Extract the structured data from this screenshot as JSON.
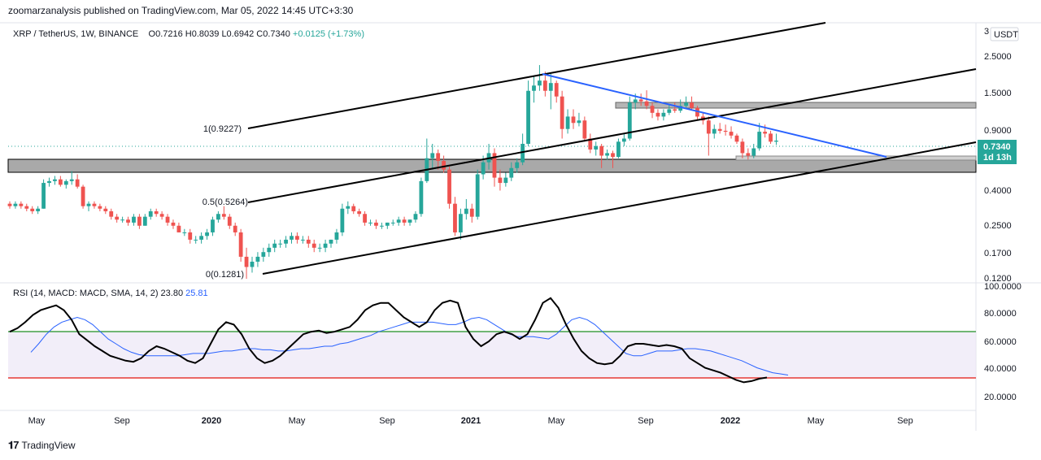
{
  "header": {
    "publisher_line": "zoomarzanalysis published on TradingView.com, Mar 05, 2022 14:45 UTC+3:30"
  },
  "symbol": {
    "title": "XRP / TetherUS, 1W, BINANCE",
    "open": "O0.7216",
    "high": "H0.8039",
    "low": "L0.6942",
    "close": "C0.7340",
    "change": "+0.0125 (+1.73%)"
  },
  "price_axis": {
    "currency_button": "USDT",
    "labels": [
      "3",
      "2.5000",
      "1.5000",
      "0.9000",
      "0.4000",
      "0.2500",
      "0.1700",
      "0.1200"
    ],
    "last_price": "0.7340",
    "countdown": "1d 13h",
    "last_price_color": "#26a69a"
  },
  "fib_labels": [
    "1(0.9227)",
    "0.5(0.5264)",
    "0(0.1281)"
  ],
  "rsi": {
    "legend": "RSI (14, MACD: MACD, SMA, 14, 2)",
    "value": "23.80",
    "ma_value": "25.81",
    "axis_labels": [
      "100.0000",
      "80.0000",
      "60.0000",
      "40.0000",
      "20.0000"
    ],
    "upper_band": 67,
    "lower_band": 33,
    "rsi_color": "#000000",
    "ma_color": "#2962ff"
  },
  "time_axis": [
    "May",
    "Sep",
    "2020",
    "May",
    "Sep",
    "2021",
    "May",
    "Sep",
    "2022",
    "May",
    "Sep"
  ],
  "footer": {
    "brand": "TradingView"
  },
  "chart_data": {
    "type": "candlestick",
    "pair": "XRP / TetherUS",
    "interval": "1W",
    "log_scale": true,
    "y_ticks": [
      0.12,
      0.17,
      0.25,
      0.4,
      0.9,
      1.5,
      2.5,
      3
    ],
    "ylim": [
      0.12,
      3
    ],
    "candles": [
      [
        0.32,
        0.33,
        0.3,
        0.31
      ],
      [
        0.31,
        0.33,
        0.3,
        0.32
      ],
      [
        0.32,
        0.33,
        0.3,
        0.31
      ],
      [
        0.31,
        0.32,
        0.29,
        0.3
      ],
      [
        0.3,
        0.31,
        0.28,
        0.29
      ],
      [
        0.29,
        0.31,
        0.28,
        0.3
      ],
      [
        0.3,
        0.44,
        0.3,
        0.42
      ],
      [
        0.42,
        0.45,
        0.4,
        0.43
      ],
      [
        0.43,
        0.46,
        0.41,
        0.44
      ],
      [
        0.44,
        0.46,
        0.4,
        0.41
      ],
      [
        0.41,
        0.44,
        0.39,
        0.43
      ],
      [
        0.43,
        0.49,
        0.41,
        0.44
      ],
      [
        0.44,
        0.47,
        0.39,
        0.4
      ],
      [
        0.4,
        0.41,
        0.3,
        0.31
      ],
      [
        0.31,
        0.33,
        0.29,
        0.32
      ],
      [
        0.32,
        0.33,
        0.3,
        0.31
      ],
      [
        0.31,
        0.32,
        0.29,
        0.3
      ],
      [
        0.3,
        0.31,
        0.28,
        0.29
      ],
      [
        0.29,
        0.3,
        0.26,
        0.27
      ],
      [
        0.27,
        0.28,
        0.25,
        0.26
      ],
      [
        0.26,
        0.27,
        0.25,
        0.26
      ],
      [
        0.26,
        0.27,
        0.24,
        0.25
      ],
      [
        0.25,
        0.28,
        0.24,
        0.27
      ],
      [
        0.27,
        0.28,
        0.23,
        0.24
      ],
      [
        0.24,
        0.28,
        0.24,
        0.27
      ],
      [
        0.27,
        0.3,
        0.26,
        0.29
      ],
      [
        0.29,
        0.3,
        0.27,
        0.28
      ],
      [
        0.28,
        0.29,
        0.26,
        0.27
      ],
      [
        0.27,
        0.28,
        0.24,
        0.25
      ],
      [
        0.25,
        0.26,
        0.23,
        0.24
      ],
      [
        0.24,
        0.25,
        0.22,
        0.22
      ],
      [
        0.22,
        0.23,
        0.21,
        0.22
      ],
      [
        0.22,
        0.23,
        0.19,
        0.2
      ],
      [
        0.2,
        0.21,
        0.19,
        0.2
      ],
      [
        0.2,
        0.22,
        0.19,
        0.21
      ],
      [
        0.21,
        0.23,
        0.2,
        0.22
      ],
      [
        0.22,
        0.27,
        0.21,
        0.26
      ],
      [
        0.26,
        0.29,
        0.25,
        0.28
      ],
      [
        0.28,
        0.31,
        0.26,
        0.27
      ],
      [
        0.27,
        0.28,
        0.23,
        0.24
      ],
      [
        0.24,
        0.25,
        0.21,
        0.22
      ],
      [
        0.22,
        0.23,
        0.15,
        0.16
      ],
      [
        0.16,
        0.18,
        0.12,
        0.14
      ],
      [
        0.14,
        0.16,
        0.13,
        0.15
      ],
      [
        0.15,
        0.17,
        0.14,
        0.16
      ],
      [
        0.16,
        0.18,
        0.15,
        0.17
      ],
      [
        0.17,
        0.19,
        0.16,
        0.18
      ],
      [
        0.18,
        0.2,
        0.17,
        0.19
      ],
      [
        0.19,
        0.2,
        0.18,
        0.19
      ],
      [
        0.19,
        0.21,
        0.18,
        0.2
      ],
      [
        0.2,
        0.22,
        0.19,
        0.21
      ],
      [
        0.21,
        0.22,
        0.19,
        0.2
      ],
      [
        0.2,
        0.21,
        0.19,
        0.2
      ],
      [
        0.2,
        0.21,
        0.18,
        0.19
      ],
      [
        0.19,
        0.2,
        0.17,
        0.18
      ],
      [
        0.18,
        0.19,
        0.17,
        0.18
      ],
      [
        0.18,
        0.2,
        0.17,
        0.19
      ],
      [
        0.19,
        0.2,
        0.18,
        0.2
      ],
      [
        0.2,
        0.23,
        0.19,
        0.22
      ],
      [
        0.22,
        0.32,
        0.21,
        0.3
      ],
      [
        0.3,
        0.33,
        0.28,
        0.31
      ],
      [
        0.31,
        0.32,
        0.28,
        0.29
      ],
      [
        0.29,
        0.3,
        0.27,
        0.28
      ],
      [
        0.28,
        0.29,
        0.24,
        0.25
      ],
      [
        0.25,
        0.26,
        0.24,
        0.25
      ],
      [
        0.25,
        0.26,
        0.23,
        0.24
      ],
      [
        0.24,
        0.25,
        0.23,
        0.24
      ],
      [
        0.24,
        0.25,
        0.23,
        0.25
      ],
      [
        0.25,
        0.26,
        0.24,
        0.25
      ],
      [
        0.25,
        0.27,
        0.24,
        0.26
      ],
      [
        0.26,
        0.27,
        0.24,
        0.25
      ],
      [
        0.25,
        0.26,
        0.24,
        0.26
      ],
      [
        0.26,
        0.29,
        0.25,
        0.28
      ],
      [
        0.28,
        0.45,
        0.27,
        0.43
      ],
      [
        0.43,
        0.75,
        0.42,
        0.58
      ],
      [
        0.58,
        0.7,
        0.5,
        0.62
      ],
      [
        0.62,
        0.65,
        0.5,
        0.56
      ],
      [
        0.56,
        0.6,
        0.48,
        0.5
      ],
      [
        0.5,
        0.52,
        0.3,
        0.32
      ],
      [
        0.32,
        0.35,
        0.21,
        0.22
      ],
      [
        0.22,
        0.3,
        0.2,
        0.28
      ],
      [
        0.28,
        0.34,
        0.26,
        0.3
      ],
      [
        0.3,
        0.32,
        0.25,
        0.27
      ],
      [
        0.27,
        0.5,
        0.26,
        0.47
      ],
      [
        0.47,
        0.6,
        0.44,
        0.55
      ],
      [
        0.55,
        0.7,
        0.5,
        0.62
      ],
      [
        0.62,
        0.66,
        0.4,
        0.45
      ],
      [
        0.45,
        0.5,
        0.38,
        0.42
      ],
      [
        0.42,
        0.48,
        0.4,
        0.45
      ],
      [
        0.45,
        0.55,
        0.43,
        0.51
      ],
      [
        0.51,
        0.58,
        0.48,
        0.55
      ],
      [
        0.55,
        0.8,
        0.53,
        0.7
      ],
      [
        0.7,
        1.6,
        0.68,
        1.4
      ],
      [
        1.4,
        1.7,
        1.2,
        1.5
      ],
      [
        1.5,
        1.96,
        1.4,
        1.6
      ],
      [
        1.6,
        1.8,
        1.3,
        1.4
      ],
      [
        1.4,
        1.75,
        1.1,
        1.55
      ],
      [
        1.55,
        1.6,
        1.2,
        1.3
      ],
      [
        1.3,
        1.4,
        0.75,
        0.85
      ],
      [
        0.85,
        1.1,
        0.8,
        1.0
      ],
      [
        1.0,
        1.1,
        0.85,
        0.92
      ],
      [
        0.92,
        1.05,
        0.88,
        0.95
      ],
      [
        0.95,
        1.0,
        0.72,
        0.75
      ],
      [
        0.75,
        0.8,
        0.62,
        0.65
      ],
      [
        0.65,
        0.72,
        0.6,
        0.68
      ],
      [
        0.68,
        0.7,
        0.51,
        0.6
      ],
      [
        0.6,
        0.65,
        0.57,
        0.62
      ],
      [
        0.62,
        0.64,
        0.51,
        0.59
      ],
      [
        0.59,
        0.75,
        0.58,
        0.72
      ],
      [
        0.72,
        0.8,
        0.68,
        0.75
      ],
      [
        0.75,
        1.3,
        0.73,
        1.2
      ],
      [
        1.2,
        1.35,
        1.1,
        1.25
      ],
      [
        1.25,
        1.35,
        1.15,
        1.22
      ],
      [
        1.22,
        1.41,
        1.1,
        1.15
      ],
      [
        1.15,
        1.2,
        0.98,
        1.05
      ],
      [
        1.05,
        1.1,
        0.95,
        1.0
      ],
      [
        1.0,
        1.1,
        0.95,
        1.05
      ],
      [
        1.05,
        1.18,
        1.02,
        1.1
      ],
      [
        1.1,
        1.2,
        1.05,
        1.08
      ],
      [
        1.08,
        1.25,
        1.05,
        1.15
      ],
      [
        1.15,
        1.3,
        1.1,
        1.2
      ],
      [
        1.2,
        1.3,
        1.1,
        1.12
      ],
      [
        1.12,
        1.15,
        0.95,
        1.0
      ],
      [
        1.0,
        1.05,
        0.9,
        0.95
      ],
      [
        0.95,
        1.0,
        0.6,
        0.8
      ],
      [
        0.8,
        0.9,
        0.75,
        0.85
      ],
      [
        0.85,
        0.92,
        0.8,
        0.83
      ],
      [
        0.83,
        0.9,
        0.78,
        0.82
      ],
      [
        0.82,
        0.88,
        0.75,
        0.78
      ],
      [
        0.78,
        0.8,
        0.7,
        0.72
      ],
      [
        0.72,
        0.75,
        0.58,
        0.62
      ],
      [
        0.62,
        0.66,
        0.57,
        0.6
      ],
      [
        0.6,
        0.7,
        0.58,
        0.66
      ],
      [
        0.66,
        0.92,
        0.64,
        0.82
      ],
      [
        0.82,
        0.9,
        0.76,
        0.8
      ],
      [
        0.8,
        0.83,
        0.7,
        0.72
      ],
      [
        0.72,
        0.8,
        0.69,
        0.73
      ]
    ],
    "candle_colors": {
      "up": "#26a69a",
      "down": "#ef5350"
    },
    "fib_channel": {
      "1": 0.9227,
      "0.5": 0.5264,
      "0": 0.1281
    },
    "rsi_series": [
      62,
      65,
      70,
      76,
      80,
      82,
      84,
      80,
      72,
      60,
      55,
      50,
      46,
      42,
      40,
      38,
      37,
      40,
      46,
      50,
      48,
      45,
      42,
      38,
      36,
      40,
      52,
      64,
      70,
      68,
      60,
      48,
      40,
      36,
      38,
      42,
      48,
      54,
      60,
      62,
      63,
      61,
      62,
      64,
      66,
      72,
      80,
      84,
      86,
      86,
      80,
      74,
      70,
      66,
      70,
      80,
      86,
      88,
      86,
      66,
      56,
      50,
      54,
      60,
      62,
      60,
      56,
      60,
      72,
      86,
      90,
      82,
      68,
      56,
      46,
      40,
      36,
      35,
      36,
      42,
      50,
      52,
      52,
      51,
      50,
      51,
      50,
      48,
      40,
      36,
      32,
      30,
      28,
      25,
      22,
      20,
      21,
      23,
      24
    ],
    "rsi_ma_series": [
      45,
      52,
      60,
      66,
      70,
      72,
      74,
      72,
      68,
      62,
      56,
      52,
      48,
      45,
      43,
      42,
      42,
      42,
      42,
      42,
      43,
      44,
      44,
      44,
      45,
      46,
      46,
      47,
      48,
      48,
      47,
      47,
      46,
      46,
      47,
      48,
      48,
      49,
      50,
      50,
      52,
      53,
      55,
      57,
      59,
      62,
      64,
      66,
      68,
      70,
      70,
      70,
      70,
      69,
      68,
      68,
      70,
      73,
      74,
      72,
      68,
      64,
      60,
      58,
      58,
      58,
      57,
      56,
      60,
      66,
      72,
      74,
      72,
      68,
      62,
      56,
      50,
      44,
      42,
      42,
      44,
      46,
      46,
      46,
      47,
      48,
      48,
      47,
      46,
      44,
      42,
      40,
      38,
      35,
      32,
      30,
      28,
      27,
      26
    ],
    "rsi_levels": [
      33,
      67
    ]
  }
}
